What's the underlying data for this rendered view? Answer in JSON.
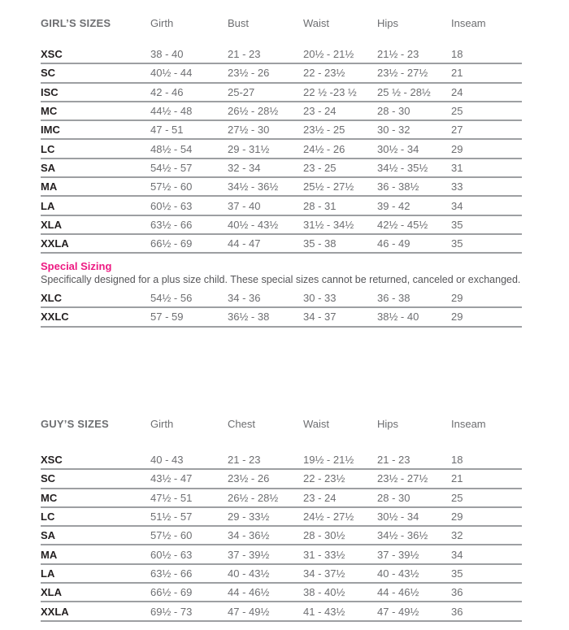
{
  "colors": {
    "accent_pink": "#ED1A82",
    "text_gray": "#6D6E71",
    "text_dark": "#231F20",
    "divider": "#9D9FA2",
    "desc_gray": "#565659"
  },
  "girls_table": {
    "title": "GIRL’S SIZES",
    "columns": [
      "Girth",
      "Bust",
      "Waist",
      "Hips",
      "Inseam"
    ],
    "rows": [
      {
        "size": "XSC",
        "values": [
          "38 - 40",
          "21 - 23",
          "20½ - 21½",
          "21½ - 23",
          "18"
        ]
      },
      {
        "size": "SC",
        "values": [
          "40½ - 44",
          "23½ - 26",
          "22 - 23½",
          "23½ - 27½",
          "21"
        ]
      },
      {
        "size": "ISC",
        "values": [
          "42 - 46",
          "25-27",
          "22 ½ -23 ½",
          "25 ½ - 28½",
          "24"
        ]
      },
      {
        "size": "MC",
        "values": [
          "44½ - 48",
          "26½ - 28½",
          "23 - 24",
          "28 - 30",
          "25"
        ]
      },
      {
        "size": "IMC",
        "values": [
          "47 - 51",
          "27½ - 30",
          "23½ - 25",
          "30 - 32",
          "27"
        ]
      },
      {
        "size": "LC",
        "values": [
          "48½ - 54",
          "29 - 31½",
          "24½ - 26",
          "30½ - 34",
          "29"
        ]
      },
      {
        "size": "SA",
        "values": [
          "54½ - 57",
          "32 - 34",
          "23 - 25",
          "34½ - 35½",
          "31"
        ]
      },
      {
        "size": "MA",
        "values": [
          "57½ - 60",
          "34½ - 36½",
          "25½ - 27½",
          "36 - 38½",
          "33"
        ]
      },
      {
        "size": "LA",
        "values": [
          "60½ - 63",
          "37 - 40",
          "28 - 31",
          "39 - 42",
          "34"
        ]
      },
      {
        "size": "XLA",
        "values": [
          "63½ - 66",
          "40½ - 43½",
          "31½ - 34½",
          "42½ - 45½",
          "35"
        ]
      },
      {
        "size": "XXLA",
        "values": [
          "66½ - 69",
          "44 - 47",
          "35 - 38",
          "46 - 49",
          "35"
        ]
      }
    ]
  },
  "special_sizing": {
    "title": "Special Sizing",
    "description": "Specifically designed for a plus size child. These special sizes cannot be returned, canceled or exchanged.",
    "rows": [
      {
        "size": "XLC",
        "values": [
          "54½ - 56",
          "34 - 36",
          "30 - 33",
          "36 - 38",
          "29"
        ]
      },
      {
        "size": "XXLC",
        "values": [
          "57 - 59",
          "36½ - 38",
          "34 - 37",
          "38½ - 40",
          "29"
        ]
      }
    ]
  },
  "guys_table": {
    "title": "GUY’S SIZES",
    "columns": [
      "Girth",
      "Chest",
      "Waist",
      "Hips",
      "Inseam"
    ],
    "rows": [
      {
        "size": "XSC",
        "values": [
          "40 - 43",
          "21 - 23",
          "19½ - 21½",
          "21 - 23",
          "18"
        ]
      },
      {
        "size": "SC",
        "values": [
          "43½ - 47",
          "23½ - 26",
          "22 - 23½",
          "23½ - 27½",
          "21"
        ]
      },
      {
        "size": "MC",
        "values": [
          "47½ - 51",
          "26½ - 28½",
          "23 - 24",
          "28 - 30",
          "25"
        ]
      },
      {
        "size": "LC",
        "values": [
          "51½ - 57",
          "29 - 33½",
          "24½ - 27½",
          "30½ - 34",
          "29"
        ]
      },
      {
        "size": "SA",
        "values": [
          "57½ - 60",
          "34 - 36½",
          "28 - 30½",
          "34½ - 36½",
          "32"
        ]
      },
      {
        "size": "MA",
        "values": [
          "60½ - 63",
          "37 - 39½",
          "31 - 33½",
          "37 - 39½",
          "34"
        ]
      },
      {
        "size": "LA",
        "values": [
          "63½ - 66",
          "40 - 43½",
          "34 - 37½",
          "40 - 43½",
          "35"
        ]
      },
      {
        "size": "XLA",
        "values": [
          "66½ - 69",
          "44 - 46½",
          "38 - 40½",
          "44 - 46½",
          "36"
        ]
      },
      {
        "size": "XXLA",
        "values": [
          "69½ - 73",
          "47 - 49½",
          "41 - 43½",
          "47 - 49½",
          "36"
        ]
      }
    ]
  }
}
